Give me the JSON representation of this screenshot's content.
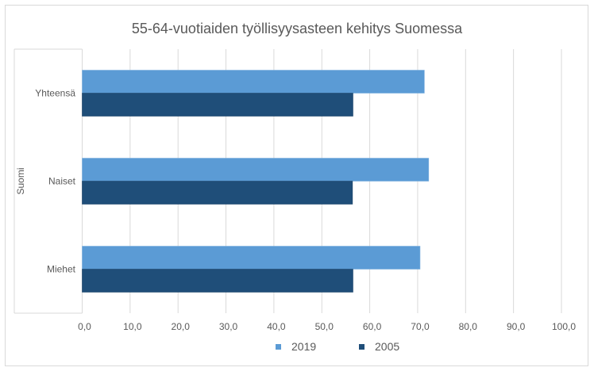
{
  "chart_data": {
    "type": "bar",
    "orientation": "horizontal",
    "title": "55-64-vuotiaiden työllisyysasteen kehitys Suomessa",
    "group_label": "Suomi",
    "categories": [
      "Yhteensä",
      "Naiset",
      "Miehet"
    ],
    "series": [
      {
        "name": "2019",
        "color": "#5B9BD5",
        "values": [
          71.4,
          72.3,
          70.5
        ]
      },
      {
        "name": "2005",
        "color": "#1F4E79",
        "values": [
          56.5,
          56.4,
          56.5
        ]
      }
    ],
    "xlim": [
      0,
      100
    ],
    "ticks": [
      "0,0",
      "10,0",
      "20,0",
      "30,0",
      "40,0",
      "50,0",
      "60,0",
      "70,0",
      "80,0",
      "90,0",
      "100,0"
    ],
    "grid": true,
    "legend": "bottom"
  }
}
